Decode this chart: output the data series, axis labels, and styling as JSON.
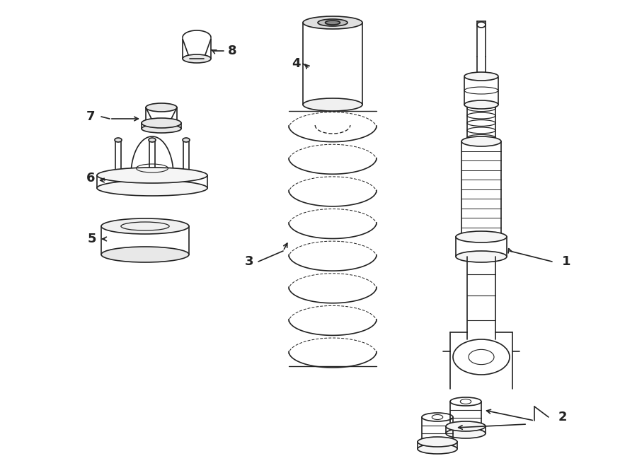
{
  "bg_color": "#ffffff",
  "line_color": "#222222",
  "lw": 1.2,
  "fig_w": 9.0,
  "fig_h": 6.62,
  "dpi": 100
}
